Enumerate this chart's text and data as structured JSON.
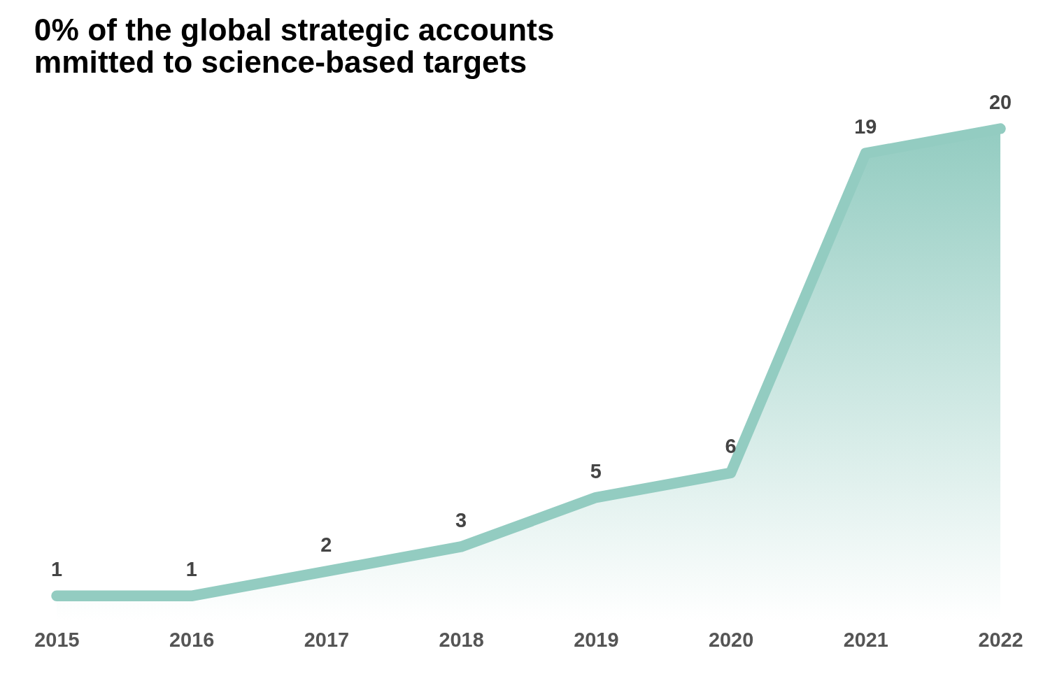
{
  "chart_data": {
    "type": "area",
    "title": [
      "0% of the global strategic accounts",
      "mmitted to science-based targets"
    ],
    "categories": [
      "2015",
      "2016",
      "2017",
      "2018",
      "2019",
      "2020",
      "2021",
      "2022"
    ],
    "values": [
      1,
      1,
      2,
      3,
      5,
      6,
      19,
      20
    ],
    "color": "#93ccc1",
    "data_labels": true,
    "grid": false
  }
}
